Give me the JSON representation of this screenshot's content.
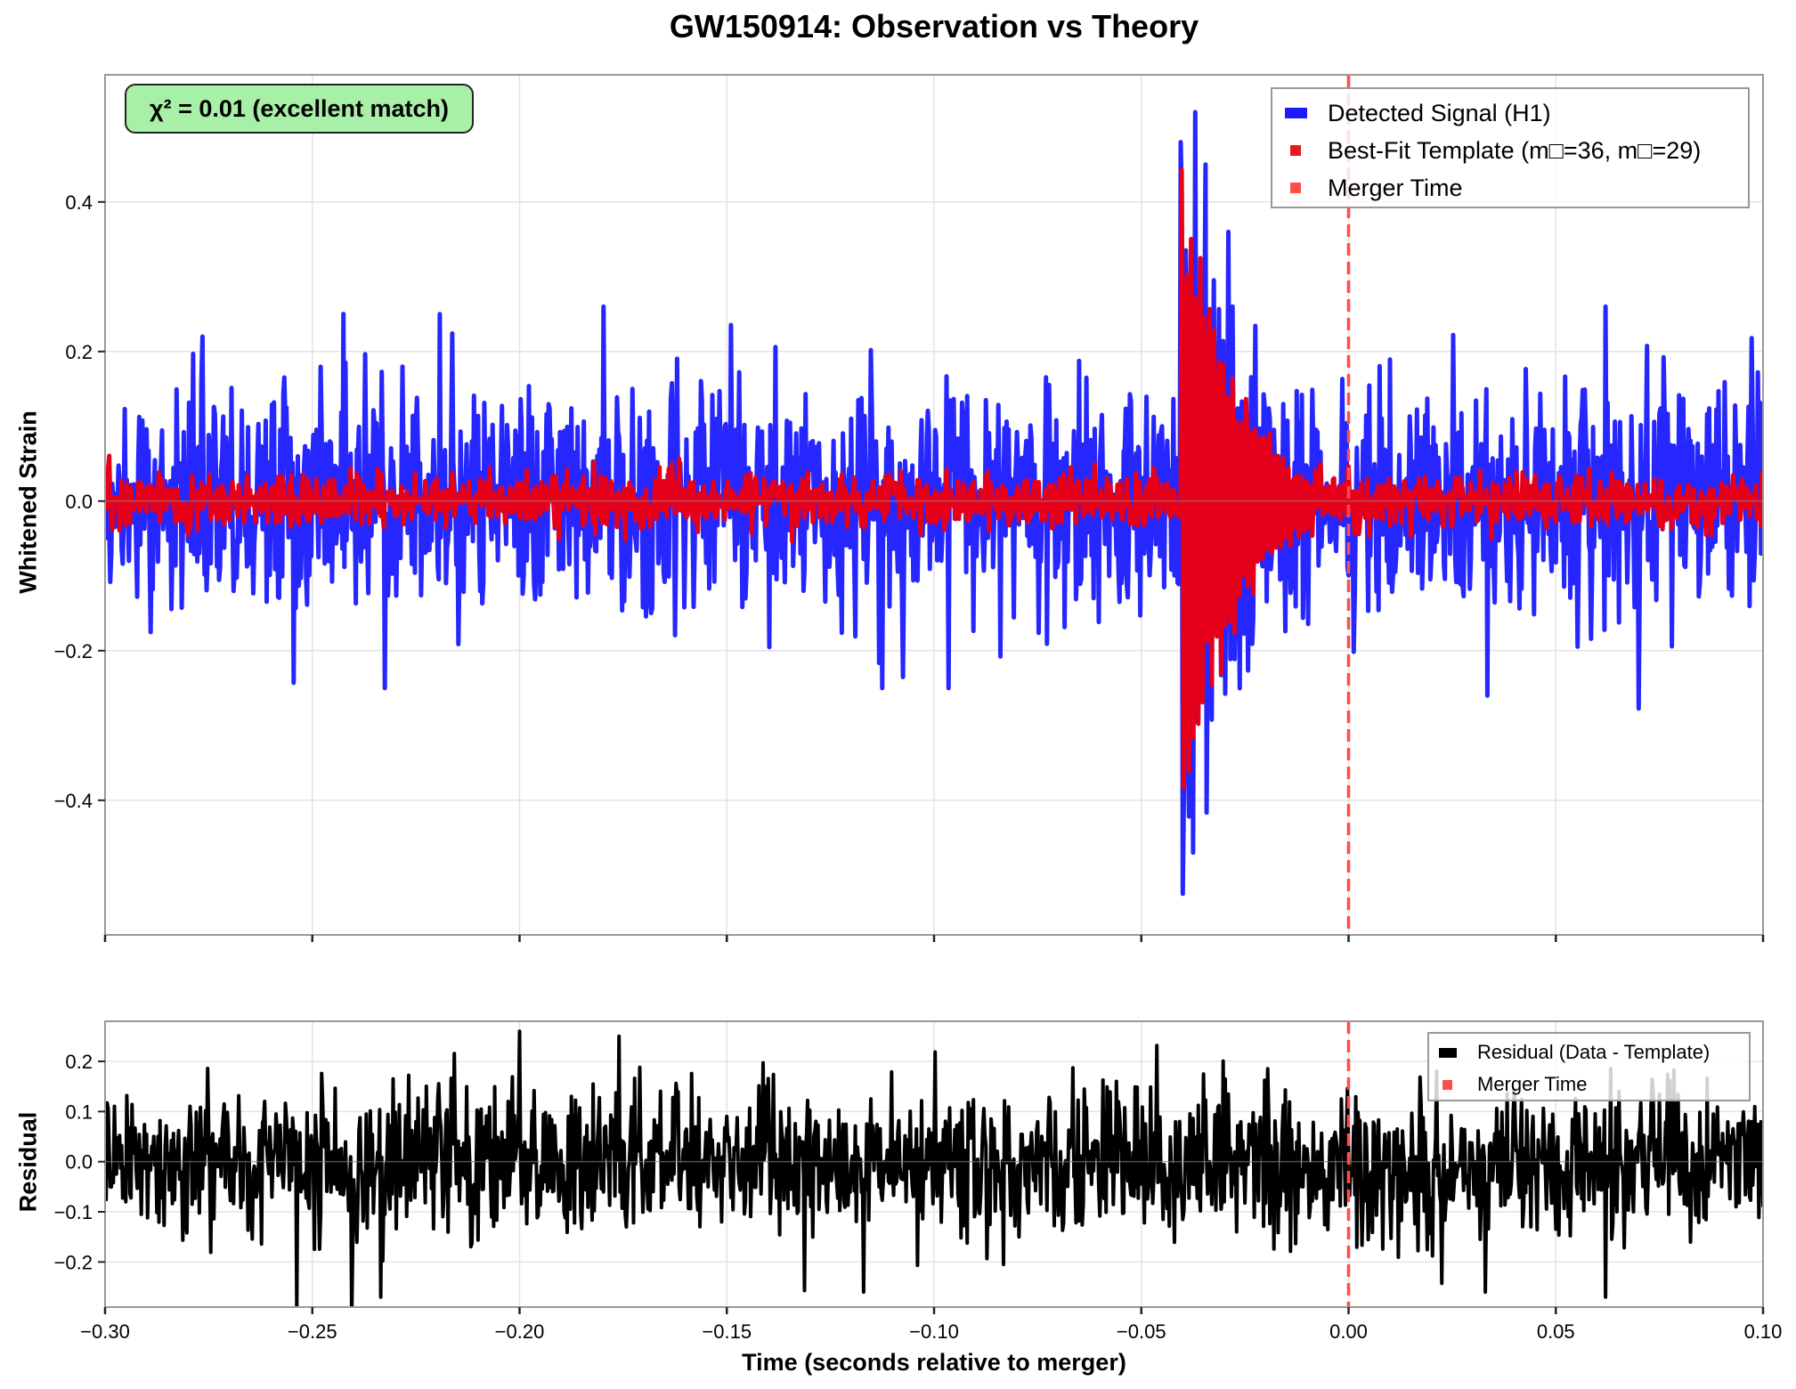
{
  "figure": {
    "title": "GW150914: Observation vs Theory",
    "annotation": "χ² = 0.01 (excellent match)",
    "annotation_bg": "#a8f0a8"
  },
  "chart_data": [
    {
      "type": "line",
      "title": "GW150914: Observation vs Theory",
      "xlabel": "",
      "ylabel": "Whitened Strain",
      "xlim": [
        -0.3,
        0.1
      ],
      "ylim": [
        -0.58,
        0.57
      ],
      "xticks": [
        -0.3,
        -0.25,
        -0.2,
        -0.15,
        -0.1,
        -0.05,
        0.0,
        0.05,
        0.1
      ],
      "xtick_labels_visible": false,
      "yticks": [
        -0.4,
        -0.2,
        0.0,
        0.2,
        0.4
      ],
      "ytick_labels": [
        "−0.4",
        "−0.2",
        "0.0",
        "0.2",
        "0.4"
      ],
      "grid": true,
      "legend_position": "upper right",
      "annotation": "χ² = 0.01 (excellent match)",
      "series": [
        {
          "name": "Detected Signal (H1)",
          "color": "#1a1aff",
          "description": "noisy whitened strain, noise std ≈ 0.075, chirp burst starting ≈ -0.0405 s",
          "noise_std": 0.075,
          "peak_max": 0.52,
          "peak_min": -0.525,
          "peaks": [
            {
              "x": -0.2766,
              "y": 0.22
            },
            {
              "x": -0.2193,
              "y": 0.25
            },
            {
              "x": -0.1797,
              "y": 0.26
            },
            {
              "x": -0.2325,
              "y": -0.25
            },
            {
              "x": -0.1124,
              "y": -0.25
            },
            {
              "x": -0.0964,
              "y": -0.25
            },
            {
              "x": -0.0405,
              "y": 0.48
            },
            {
              "x": -0.037,
              "y": 0.52
            },
            {
              "x": -0.0345,
              "y": 0.45
            },
            {
              "x": -0.029,
              "y": 0.36
            },
            {
              "x": -0.04,
              "y": -0.525
            },
            {
              "x": -0.0375,
              "y": -0.47
            },
            {
              "x": 0.062,
              "y": 0.26
            },
            {
              "x": 0.0336,
              "y": -0.26
            }
          ]
        },
        {
          "name": "Best-Fit Template (m□=36, m□=29)",
          "color": "#e60019",
          "description": "template: small noise std ≈ 0.018 plus ringdown from -0.0405 s with amplitude ≈ 0.45, decay τ ≈ 0.012 s",
          "noise_std": 0.018,
          "onset": -0.0405,
          "amplitude": 0.45,
          "decay": 0.012
        },
        {
          "name": "Merger Time",
          "color": "#ff4d4d",
          "style": "dashed vertical line",
          "x": 0.0
        }
      ]
    },
    {
      "type": "line",
      "xlabel": "Time (seconds relative to merger)",
      "ylabel": "Residual",
      "xlim": [
        -0.3,
        0.1
      ],
      "ylim": [
        -0.29,
        0.28
      ],
      "xticks": [
        -0.3,
        -0.25,
        -0.2,
        -0.15,
        -0.1,
        -0.05,
        0.0,
        0.05,
        0.1
      ],
      "xtick_labels": [
        "−0.30",
        "−0.25",
        "−0.20",
        "−0.15",
        "−0.10",
        "−0.05",
        "0.00",
        "0.05",
        "0.10"
      ],
      "yticks": [
        -0.2,
        -0.1,
        0.0,
        0.1,
        0.2
      ],
      "ytick_labels": [
        "−0.2",
        "−0.1",
        "0.0",
        "0.1",
        "0.2"
      ],
      "grid": true,
      "legend_position": "upper right",
      "series": [
        {
          "name": "Residual (Data - Template)",
          "color": "#000000",
          "description": "residual noise std ≈ 0.075, range ≈ [-0.27, 0.26]",
          "noise_std": 0.075,
          "peaks": [
            {
              "x": -0.2,
              "y": 0.26
            },
            {
              "x": -0.176,
              "y": 0.25
            },
            {
              "x": -0.2335,
              "y": -0.27
            },
            {
              "x": -0.117,
              "y": -0.26
            },
            {
              "x": 0.033,
              "y": -0.26
            },
            {
              "x": 0.062,
              "y": -0.27
            }
          ]
        },
        {
          "name": "Merger Time",
          "color": "#ff4d4d",
          "style": "dashed vertical line",
          "x": 0.0
        }
      ]
    }
  ],
  "legend_main": {
    "items": [
      {
        "label": "Detected Signal (H1)",
        "color": "#1a1aff"
      },
      {
        "label": "Best-Fit Template (m□=36, m□=29)",
        "color": "#e61a1a"
      },
      {
        "label": "Merger Time",
        "color": "#ff4d4d"
      }
    ]
  },
  "legend_residual": {
    "items": [
      {
        "label": "Residual (Data - Template)",
        "color": "#000000"
      },
      {
        "label": "Merger Time",
        "color": "#ff4d4d"
      }
    ]
  },
  "axes": {
    "main_ylabel": "Whitened Strain",
    "residual_ylabel": "Residual",
    "xlabel": "Time (seconds relative to merger)"
  }
}
